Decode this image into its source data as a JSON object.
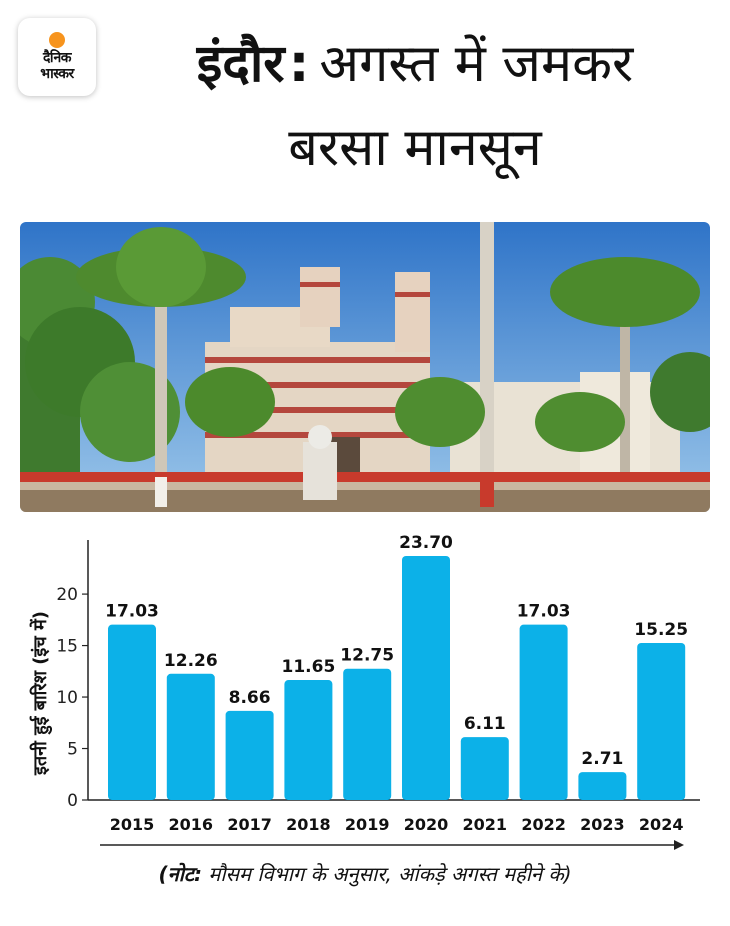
{
  "logo": {
    "line1": "दैनिक",
    "line2": "भास्कर",
    "dot_color": "#f7941d"
  },
  "headline": {
    "city": "इंदौर",
    "separator": ":",
    "rest_line1": "अगस्त में जमकर",
    "line2": "बरसा मानसून"
  },
  "photo": {
    "subject": "rajwada-palace-photo"
  },
  "chart_data": {
    "type": "bar",
    "categories": [
      "2015",
      "2016",
      "2017",
      "2018",
      "2019",
      "2020",
      "2021",
      "2022",
      "2023",
      "2024"
    ],
    "values": [
      17.03,
      12.26,
      8.66,
      11.65,
      12.75,
      23.7,
      6.11,
      17.03,
      2.71,
      15.25
    ],
    "value_labels": [
      "17.03",
      "12.26",
      "8.66",
      "11.65",
      "12.75",
      "23.70",
      "6.11",
      "17.03",
      "2.71",
      "15.25"
    ],
    "ylabel": "इतनी हुई बारिश (इंच में)",
    "yticks": [
      0,
      5,
      10,
      15,
      20
    ],
    "ylim": [
      0,
      23.7
    ],
    "bar_color": "#0cb1e8",
    "grid": false,
    "x_axis_arrow": true
  },
  "note": {
    "prefix": "(नोट:",
    "text": " मौसम विभाग के अनुसार, आंकड़े अगस्त महीने के)"
  }
}
